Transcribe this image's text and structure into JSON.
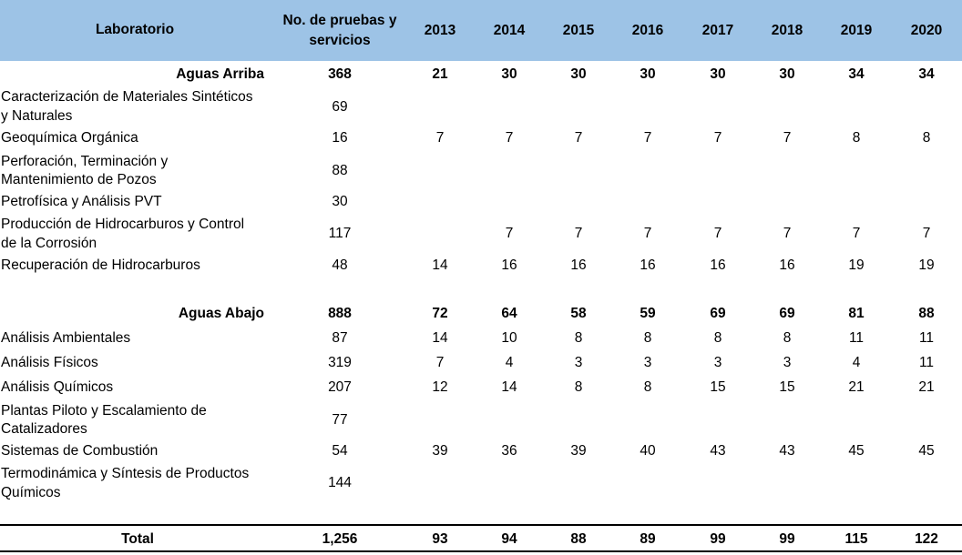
{
  "headers": {
    "lab": "Laboratorio",
    "n1": "No. de pruebas y",
    "n2": "servicios",
    "years": [
      "2013",
      "2014",
      "2015",
      "2016",
      "2017",
      "2018",
      "2019",
      "2020"
    ]
  },
  "groups": [
    {
      "name": "Aguas Arriba",
      "total": "368",
      "years": [
        "21",
        "30",
        "30",
        "30",
        "30",
        "30",
        "34",
        "34"
      ],
      "rows": [
        {
          "l1": "Caracterización de Materiales Sintéticos",
          "l2": "y Naturales",
          "n": "69",
          "years": [
            "",
            "",
            "",
            "",
            "",
            "",
            "",
            ""
          ]
        },
        {
          "l1": "Geoquímica Orgánica",
          "l2": "",
          "n": "16",
          "years": [
            "7",
            "7",
            "7",
            "7",
            "7",
            "7",
            "8",
            "8"
          ]
        },
        {
          "l1": "Perforación, Terminación y",
          "l2": "Mantenimiento de Pozos",
          "n": "88",
          "years": [
            "",
            "",
            "",
            "",
            "",
            "",
            "",
            ""
          ]
        },
        {
          "l1": "Petrofísica y Análisis PVT",
          "l2": "",
          "n": "30",
          "years": [
            "",
            "",
            "",
            "",
            "",
            "",
            "",
            ""
          ]
        },
        {
          "l1": "Producción de Hidrocarburos  y Control",
          "l2": "de la Corrosión",
          "n": "117",
          "years": [
            "",
            "7",
            "7",
            "7",
            "7",
            "7",
            "7",
            "7"
          ]
        },
        {
          "l1": "Recuperación de Hidrocarburos",
          "l2": "",
          "n": "48",
          "years": [
            "14",
            "16",
            "16",
            "16",
            "16",
            "16",
            "19",
            "19"
          ]
        }
      ]
    },
    {
      "name": "Aguas Abajo",
      "total": "888",
      "years": [
        "72",
        "64",
        "58",
        "59",
        "69",
        "69",
        "81",
        "88"
      ],
      "rows": [
        {
          "l1": "Análisis Ambientales",
          "l2": "",
          "n": "87",
          "years": [
            "14",
            "10",
            "8",
            "8",
            "8",
            "8",
            "11",
            "11"
          ]
        },
        {
          "l1": "Análisis Físicos",
          "l2": "",
          "n": "319",
          "years": [
            "7",
            "4",
            "3",
            "3",
            "3",
            "3",
            "4",
            "11"
          ]
        },
        {
          "l1": "Análisis Químicos",
          "l2": "",
          "n": "207",
          "years": [
            "12",
            "14",
            "8",
            "8",
            "15",
            "15",
            "21",
            "21"
          ]
        },
        {
          "l1": "Plantas Piloto y Escalamiento de",
          "l2": "Catalizadores",
          "n": "77",
          "years": [
            "",
            "",
            "",
            "",
            "",
            "",
            "",
            ""
          ]
        },
        {
          "l1": "Sistemas de Combustión",
          "l2": "",
          "n": "54",
          "years": [
            "39",
            "36",
            "39",
            "40",
            "43",
            "43",
            "45",
            "45"
          ]
        },
        {
          "l1": "Termodinámica y Síntesis de Productos",
          "l2": "Químicos",
          "n": "144",
          "years": [
            "",
            "",
            "",
            "",
            "",
            "",
            "",
            ""
          ]
        }
      ]
    }
  ],
  "total": {
    "label": "Total",
    "n": "1,256",
    "years": [
      "93",
      "94",
      "88",
      "89",
      "99",
      "99",
      "115",
      "122"
    ]
  },
  "colors": {
    "header_bg": "#9dc3e6"
  }
}
